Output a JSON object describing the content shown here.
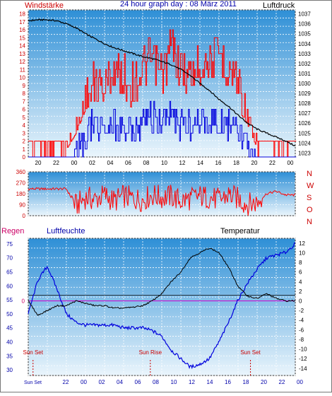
{
  "header": {
    "title": "24 hour graph day : 08 März 2011",
    "left_label": "Windstärke",
    "right_label": "Luftdruck"
  },
  "colors": {
    "wind_gust": "#ff0000",
    "wind_avg": "#0000dd",
    "pressure": "#000000",
    "direction": "#ff0000",
    "humidity": "#0000dd",
    "temperature": "#000000",
    "rain_line": "#cc00cc",
    "label_red": "#cc0000",
    "label_blue": "#0000aa",
    "label_magenta": "#cc0066",
    "grid": "#ffffff",
    "bg_top": "#2e8fd6",
    "bg_bottom": "#eaf5fc"
  },
  "chart_data": [
    {
      "id": "wind-pressure",
      "type": "line",
      "left_axis": {
        "label": "Windstärke",
        "ticks": [
          0,
          1,
          2,
          3,
          4,
          5,
          6,
          7,
          8,
          9,
          10,
          11,
          12,
          13,
          14,
          15,
          16,
          17,
          18
        ],
        "ylim": [
          0,
          18.5
        ]
      },
      "right_axis": {
        "label": "Luftdruck",
        "ticks": [
          1023,
          1024,
          1025,
          1026,
          1027,
          1028,
          1029,
          1030,
          1031,
          1032,
          1033,
          1034,
          1035,
          1036,
          1037
        ],
        "ylim": [
          1022.6,
          1037.4
        ]
      },
      "x_ticks": [
        "20",
        "22",
        "00",
        "02",
        "04",
        "06",
        "08",
        "10",
        "12",
        "14",
        "16",
        "18",
        "20",
        "22",
        "00"
      ],
      "series": [
        {
          "role": "pressure",
          "axis": "right",
          "x": [
            0,
            1,
            2,
            3,
            4,
            5,
            6,
            7,
            8,
            9,
            10,
            11,
            12,
            13,
            14,
            15,
            16,
            17,
            18,
            19,
            20,
            21,
            22,
            23,
            24,
            25,
            26,
            27,
            28
          ],
          "values": [
            1036.3,
            1036.4,
            1036.4,
            1036.3,
            1036.0,
            1035.6,
            1035.0,
            1034.5,
            1034.0,
            1033.6,
            1033.3,
            1033.0,
            1032.7,
            1032.5,
            1032.2,
            1031.9,
            1031.4,
            1030.8,
            1030.0,
            1029.3,
            1028.4,
            1027.7,
            1026.8,
            1026.0,
            1025.4,
            1025.0,
            1024.6,
            1024.2,
            1023.7
          ]
        },
        {
          "role": "gust_envelope",
          "axis": "left",
          "x": [
            0,
            1,
            2,
            3,
            4,
            5,
            6,
            7,
            8,
            9,
            10,
            11,
            12,
            13,
            14,
            15,
            16,
            17,
            18,
            19,
            20,
            21,
            22,
            23,
            24,
            25,
            26,
            27,
            28
          ],
          "values": [
            2,
            2,
            2,
            2,
            2,
            5,
            10,
            12,
            12,
            14,
            13,
            12,
            14,
            15,
            13,
            17,
            14,
            13,
            15,
            15,
            16,
            14,
            13,
            7,
            2,
            2,
            2,
            2,
            2
          ]
        },
        {
          "role": "avg_envelope",
          "axis": "left",
          "x": [
            0,
            1,
            2,
            3,
            4,
            5,
            6,
            7,
            8,
            9,
            10,
            11,
            12,
            13,
            14,
            15,
            16,
            17,
            18,
            19,
            20,
            21,
            22,
            23,
            24,
            25,
            26,
            27,
            28
          ],
          "values": [
            0,
            0,
            0,
            0,
            0,
            2,
            5,
            6,
            6,
            6,
            6,
            5,
            6,
            7,
            6,
            7,
            6,
            6,
            7,
            7,
            6,
            6,
            5,
            3,
            0,
            0,
            0,
            0,
            0
          ]
        }
      ]
    },
    {
      "id": "wind-direction",
      "type": "line",
      "left_axis": {
        "ticks": [
          0,
          90,
          180,
          270,
          360
        ],
        "ylim": [
          0,
          360
        ]
      },
      "right_labels": [
        "N",
        "W",
        "S",
        "O",
        "N"
      ],
      "series": [
        {
          "role": "direction",
          "x": [
            0,
            1,
            2,
            3,
            4,
            5,
            6,
            7,
            8,
            9,
            10,
            11,
            12,
            13,
            14,
            15,
            16,
            17,
            18,
            19,
            20,
            21,
            22,
            23,
            24,
            25,
            26,
            27,
            28
          ],
          "values": [
            220,
            220,
            220,
            220,
            220,
            80,
            150,
            130,
            170,
            120,
            160,
            140,
            130,
            170,
            150,
            160,
            120,
            140,
            160,
            150,
            130,
            170,
            140,
            90,
            110,
            180,
            200,
            170,
            170
          ]
        }
      ]
    },
    {
      "id": "humidity-temperature",
      "type": "line",
      "labels": {
        "rain": "Regen",
        "humidity": "Luftfeuchte",
        "temperature": "Temperatur"
      },
      "left_axis": {
        "ticks": [
          30,
          35,
          40,
          45,
          50,
          55,
          60,
          65,
          70,
          75
        ],
        "ylim": [
          28,
          77
        ]
      },
      "rain_axis": {
        "ticks": [
          0
        ]
      },
      "right_axis": {
        "ticks": [
          -14,
          -12,
          -10,
          -8,
          -6,
          -4,
          -2,
          0,
          2,
          4,
          6,
          8,
          10,
          12
        ],
        "ylim": [
          -15.5,
          13
        ]
      },
      "x_ticks": [
        "22",
        "00",
        "02",
        "04",
        "06",
        "08",
        "10",
        "12",
        "14",
        "16",
        "18",
        "20",
        "22",
        "00"
      ],
      "x_extra_label": "Sun Set",
      "annotations": [
        {
          "label": "Sun Set",
          "x": 0.5
        },
        {
          "label": "Sun Rise",
          "x": 12.8
        },
        {
          "label": "Sun Set",
          "x": 23.3
        }
      ],
      "series": [
        {
          "role": "humidity",
          "axis": "left",
          "x": [
            0,
            1,
            2,
            3,
            4,
            5,
            6,
            7,
            8,
            9,
            10,
            11,
            12,
            13,
            14,
            15,
            16,
            17,
            18,
            19,
            20,
            21,
            22,
            23,
            24,
            25,
            26,
            27,
            28
          ],
          "values": [
            50,
            62,
            67,
            59,
            50,
            47,
            46,
            46,
            46,
            46,
            45,
            45,
            45,
            44,
            42,
            37,
            34,
            31,
            32,
            34,
            40,
            47,
            55,
            61,
            66,
            70,
            71,
            72,
            75
          ]
        },
        {
          "role": "temperature",
          "axis": "right",
          "x": [
            0,
            1,
            2,
            3,
            4,
            5,
            6,
            7,
            8,
            9,
            10,
            11,
            12,
            13,
            14,
            15,
            16,
            17,
            18,
            19,
            20,
            21,
            22,
            23,
            24,
            25,
            26,
            27,
            28
          ],
          "values": [
            0,
            -3,
            -2,
            -1,
            -1,
            0,
            -0.5,
            -1,
            -1,
            -1.5,
            -1.5,
            -1.3,
            -1,
            0,
            1.5,
            4,
            6,
            9,
            10,
            11,
            10,
            7,
            3,
            1,
            0.5,
            1.5,
            0.5,
            0,
            0
          ]
        }
      ]
    }
  ]
}
